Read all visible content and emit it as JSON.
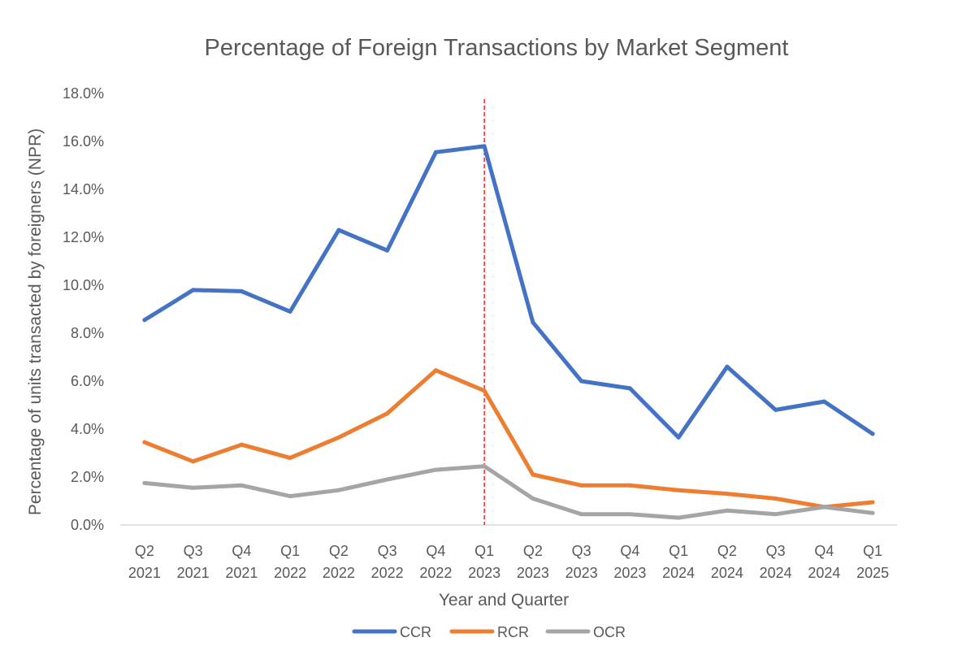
{
  "chart_data": {
    "type": "line",
    "title": "Percentage of Foreign Transactions by Market Segment",
    "xlabel": "Year and Quarter",
    "ylabel": "Percentage of units transacted by foreigners (NPR)",
    "categories": [
      [
        "Q2",
        "2021"
      ],
      [
        "Q3",
        "2021"
      ],
      [
        "Q4",
        "2021"
      ],
      [
        "Q1",
        "2022"
      ],
      [
        "Q2",
        "2022"
      ],
      [
        "Q3",
        "2022"
      ],
      [
        "Q4",
        "2022"
      ],
      [
        "Q1",
        "2023"
      ],
      [
        "Q2",
        "2023"
      ],
      [
        "Q3",
        "2023"
      ],
      [
        "Q4",
        "2023"
      ],
      [
        "Q1",
        "2024"
      ],
      [
        "Q2",
        "2024"
      ],
      [
        "Q3",
        "2024"
      ],
      [
        "Q4",
        "2024"
      ],
      [
        "Q1",
        "2025"
      ]
    ],
    "ylim": [
      0,
      18
    ],
    "ytick_step": 2,
    "ytick_format": "percent_1dp",
    "grid": false,
    "legend_position": "bottom",
    "reference_line": {
      "category_index": 7,
      "style": "dashed",
      "color": "#ff0000"
    },
    "series": [
      {
        "name": "CCR",
        "color": "#4472c4",
        "values": [
          8.55,
          9.8,
          9.75,
          8.9,
          12.3,
          11.45,
          15.55,
          15.8,
          8.45,
          6.0,
          5.7,
          3.65,
          6.6,
          4.8,
          5.15,
          3.8
        ]
      },
      {
        "name": "RCR",
        "color": "#ed7d31",
        "values": [
          3.45,
          2.65,
          3.35,
          2.8,
          3.65,
          4.65,
          6.45,
          5.6,
          2.1,
          1.65,
          1.65,
          1.45,
          1.3,
          1.1,
          0.75,
          0.95
        ]
      },
      {
        "name": "OCR",
        "color": "#a5a5a5",
        "values": [
          1.75,
          1.55,
          1.65,
          1.2,
          1.45,
          1.9,
          2.3,
          2.45,
          1.1,
          0.45,
          0.45,
          0.3,
          0.6,
          0.45,
          0.75,
          0.5
        ]
      }
    ]
  }
}
